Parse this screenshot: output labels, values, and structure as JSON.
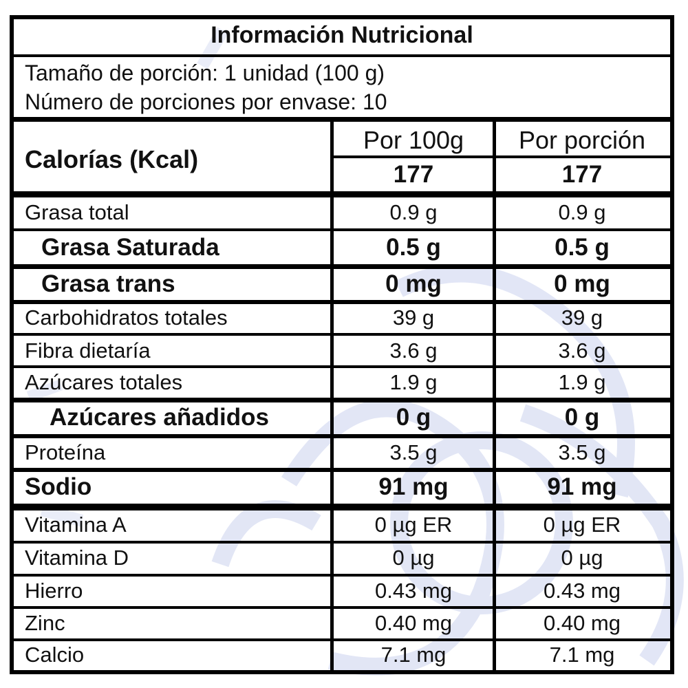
{
  "title": "Información Nutricional",
  "serving": {
    "size": "Tamaño de porción: 1 unidad (100 g)",
    "count": "Número de porciones por envase: 10"
  },
  "calories": {
    "label": "Calorías (Kcal)",
    "col1_header": "Por 100g",
    "col2_header": "Por porción",
    "per100": "177",
    "perserving": "177"
  },
  "rows": [
    {
      "name": "Grasa total",
      "per100": "0.9 g",
      "perserving": "0.9 g"
    },
    {
      "name": "Grasa Saturada",
      "per100": "0.5 g",
      "perserving": "0.5 g"
    },
    {
      "name": "Grasa trans",
      "per100": "0 mg",
      "perserving": "0 mg"
    },
    {
      "name": "Carbohidratos totales",
      "per100": "39 g",
      "perserving": "39 g"
    },
    {
      "name": "Fibra dietaría",
      "per100": "3.6 g",
      "perserving": "3.6 g"
    },
    {
      "name": "Azúcares totales",
      "per100": "1.9 g",
      "perserving": "1.9 g"
    },
    {
      "name": "Azúcares añadidos",
      "per100": "0 g",
      "perserving": "0 g"
    },
    {
      "name": "Proteína",
      "per100": "3.5 g",
      "perserving": "3.5 g"
    },
    {
      "name": "Sodio",
      "per100": "91 mg",
      "perserving": "91 mg"
    },
    {
      "name": "Vitamina A",
      "per100": "0 µg ER",
      "perserving": "0 µg ER"
    },
    {
      "name": "Vitamina D",
      "per100": "0 µg",
      "perserving": "0 µg"
    },
    {
      "name": "Hierro",
      "per100": "0.43 mg",
      "perserving": "0.43 mg"
    },
    {
      "name": "Zinc",
      "per100": "0.40 mg",
      "perserving": "0.40 mg"
    },
    {
      "name": "Calcio",
      "per100": "7.1 mg",
      "perserving": "7.1 mg"
    }
  ],
  "colors": {
    "border": "#000000",
    "watermark": "#c9d1ee"
  }
}
